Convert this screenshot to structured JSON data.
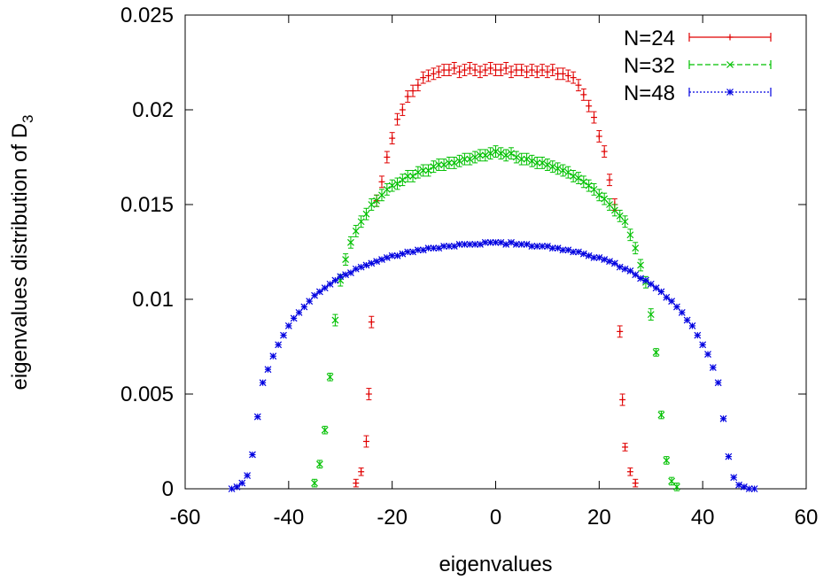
{
  "chart_data": {
    "type": "scatter",
    "xlabel": "eigenvalues",
    "ylabel_main": "eigenvalues distribution of D",
    "ylabel_sub": "3",
    "xlim": [
      -60,
      60
    ],
    "ylim": [
      0,
      0.025
    ],
    "x_ticks": [
      -60,
      -40,
      -20,
      0,
      20,
      40,
      60
    ],
    "x_tick_labels": [
      "-60",
      "-40",
      "-20",
      "0",
      "20",
      "40",
      "60"
    ],
    "y_ticks": [
      0,
      0.005,
      0.01,
      0.015,
      0.02,
      0.025
    ],
    "y_tick_labels": [
      "0",
      "0.005",
      "0.01",
      "0.015",
      "0.02",
      "0.025"
    ],
    "grid": false,
    "legend_position": "top-right",
    "series": [
      {
        "name": "N=24",
        "color": "#e00000",
        "marker": "plus",
        "line_style": "solid",
        "x": [
          -27,
          -26,
          -25,
          -24.5,
          -24,
          -23,
          -22,
          -21,
          -20,
          -19,
          -18,
          -17,
          -16,
          -15,
          -14,
          -13,
          -12,
          -11,
          -10,
          -9,
          -8,
          -7,
          -6,
          -5,
          -4,
          -3,
          -2,
          -1,
          0,
          1,
          2,
          3,
          4,
          5,
          6,
          7,
          8,
          9,
          10,
          11,
          12,
          13,
          14,
          15,
          16,
          17,
          18,
          19,
          20,
          21,
          22,
          23,
          24,
          24.5,
          25,
          26,
          27
        ],
        "y": [
          0.0003,
          0.0009,
          0.0025,
          0.005,
          0.0088,
          0.0152,
          0.0162,
          0.0175,
          0.0185,
          0.0195,
          0.02,
          0.0207,
          0.021,
          0.0213,
          0.0217,
          0.0218,
          0.0219,
          0.022,
          0.0221,
          0.0221,
          0.0222,
          0.022,
          0.0221,
          0.0222,
          0.0221,
          0.022,
          0.0221,
          0.0222,
          0.0221,
          0.0221,
          0.0222,
          0.022,
          0.0221,
          0.0221,
          0.022,
          0.0221,
          0.022,
          0.0221,
          0.022,
          0.0221,
          0.0219,
          0.0219,
          0.0218,
          0.0217,
          0.0213,
          0.0208,
          0.0202,
          0.0196,
          0.0186,
          0.0178,
          0.0163,
          0.015,
          0.0083,
          0.0047,
          0.0022,
          0.0009,
          0.0003
        ],
        "err": [
          0.0002,
          0.0002,
          0.0003,
          0.0003,
          0.0003,
          0.0003,
          0.0003,
          0.0003,
          0.0003,
          0.0003,
          0.0003,
          0.0003,
          0.0003,
          0.0003,
          0.0003,
          0.0003,
          0.0003,
          0.0003,
          0.0003,
          0.0003,
          0.0003,
          0.0003,
          0.0003,
          0.0003,
          0.0003,
          0.0003,
          0.0003,
          0.0003,
          0.0003,
          0.0003,
          0.0003,
          0.0003,
          0.0003,
          0.0003,
          0.0003,
          0.0003,
          0.0003,
          0.0003,
          0.0003,
          0.0003,
          0.0003,
          0.0003,
          0.0003,
          0.0003,
          0.0003,
          0.0003,
          0.0003,
          0.0003,
          0.0003,
          0.0003,
          0.0003,
          0.0003,
          0.0003,
          0.0003,
          0.0002,
          0.0002,
          0.0002
        ]
      },
      {
        "name": "N=32",
        "color": "#00c000",
        "marker": "x",
        "line_style": "dashed",
        "x": [
          -35,
          -34,
          -33,
          -32,
          -31,
          -30,
          -29,
          -28,
          -27,
          -26,
          -25,
          -24,
          -23,
          -22,
          -21,
          -20,
          -19,
          -18,
          -17,
          -16,
          -15,
          -14,
          -13,
          -12,
          -11,
          -10,
          -9,
          -8,
          -7,
          -6,
          -5,
          -4,
          -3,
          -2,
          -1,
          0,
          1,
          2,
          3,
          4,
          5,
          6,
          7,
          8,
          9,
          10,
          11,
          12,
          13,
          14,
          15,
          16,
          17,
          18,
          19,
          20,
          21,
          22,
          23,
          24,
          25,
          26,
          27,
          28,
          29,
          30,
          31,
          32,
          33,
          34,
          35
        ],
        "y": [
          0.0003,
          0.0013,
          0.0031,
          0.0059,
          0.0089,
          0.011,
          0.0121,
          0.013,
          0.0136,
          0.0141,
          0.0145,
          0.015,
          0.0152,
          0.0155,
          0.0158,
          0.016,
          0.0161,
          0.0163,
          0.0165,
          0.0165,
          0.0167,
          0.0168,
          0.0168,
          0.017,
          0.0171,
          0.0171,
          0.0172,
          0.0172,
          0.0173,
          0.0174,
          0.0174,
          0.0175,
          0.0176,
          0.0176,
          0.0177,
          0.0178,
          0.0177,
          0.0176,
          0.0177,
          0.0175,
          0.0174,
          0.0174,
          0.0173,
          0.0172,
          0.0172,
          0.0171,
          0.017,
          0.0169,
          0.0168,
          0.0167,
          0.0165,
          0.0164,
          0.0162,
          0.016,
          0.0158,
          0.0155,
          0.0153,
          0.015,
          0.0147,
          0.0144,
          0.0141,
          0.0134,
          0.0127,
          0.0118,
          0.0109,
          0.0092,
          0.0072,
          0.0039,
          0.0015,
          0.0004,
          0.0001
        ],
        "err": [
          0.0002,
          0.0002,
          0.0002,
          0.0002,
          0.0003,
          0.0003,
          0.0003,
          0.0003,
          0.0003,
          0.0003,
          0.0003,
          0.0003,
          0.0003,
          0.0003,
          0.0003,
          0.0003,
          0.0003,
          0.0003,
          0.0003,
          0.0003,
          0.0003,
          0.0003,
          0.0003,
          0.0003,
          0.0003,
          0.0003,
          0.0003,
          0.0003,
          0.0003,
          0.0003,
          0.0003,
          0.0003,
          0.0003,
          0.0003,
          0.0003,
          0.0003,
          0.0003,
          0.0003,
          0.0003,
          0.0003,
          0.0003,
          0.0003,
          0.0003,
          0.0003,
          0.0003,
          0.0003,
          0.0003,
          0.0003,
          0.0003,
          0.0003,
          0.0003,
          0.0003,
          0.0003,
          0.0003,
          0.0003,
          0.0003,
          0.0003,
          0.0003,
          0.0003,
          0.0003,
          0.0003,
          0.0003,
          0.0003,
          0.0003,
          0.0003,
          0.0003,
          0.0002,
          0.0002,
          0.0002,
          0.0002,
          0.0002
        ]
      },
      {
        "name": "N=48",
        "color": "#0000e0",
        "marker": "star",
        "line_style": "dotted",
        "x": [
          -51,
          -50,
          -49,
          -48,
          -47,
          -46,
          -45,
          -44,
          -43,
          -42,
          -41,
          -40,
          -39,
          -38,
          -37,
          -36,
          -35,
          -34,
          -33,
          -32,
          -31,
          -30,
          -29,
          -28,
          -27,
          -26,
          -25,
          -24,
          -23,
          -22,
          -21,
          -20,
          -19,
          -18,
          -17,
          -16,
          -15,
          -14,
          -13,
          -12,
          -11,
          -10,
          -9,
          -8,
          -7,
          -6,
          -5,
          -4,
          -3,
          -2,
          -1,
          0,
          1,
          2,
          3,
          4,
          5,
          6,
          7,
          8,
          9,
          10,
          11,
          12,
          13,
          14,
          15,
          16,
          17,
          18,
          19,
          20,
          21,
          22,
          23,
          24,
          25,
          26,
          27,
          28,
          29,
          30,
          31,
          32,
          33,
          34,
          35,
          36,
          37,
          38,
          39,
          40,
          41,
          42,
          43,
          44,
          45,
          46,
          47,
          48,
          49,
          50
        ],
        "y": [
          0.0,
          0.0001,
          0.0003,
          0.0007,
          0.0018,
          0.0038,
          0.0056,
          0.0063,
          0.007,
          0.0076,
          0.0081,
          0.0086,
          0.009,
          0.0093,
          0.0096,
          0.0099,
          0.0102,
          0.0104,
          0.0106,
          0.0108,
          0.011,
          0.0112,
          0.0113,
          0.0114,
          0.0116,
          0.0117,
          0.0118,
          0.0119,
          0.012,
          0.0121,
          0.0122,
          0.0123,
          0.0123,
          0.0124,
          0.0125,
          0.0125,
          0.0126,
          0.0126,
          0.0127,
          0.0127,
          0.0127,
          0.0128,
          0.0128,
          0.0128,
          0.0129,
          0.0129,
          0.0129,
          0.0129,
          0.0129,
          0.013,
          0.013,
          0.013,
          0.013,
          0.0129,
          0.013,
          0.0129,
          0.0129,
          0.0129,
          0.0128,
          0.0128,
          0.0128,
          0.0128,
          0.0127,
          0.0127,
          0.0126,
          0.0126,
          0.0125,
          0.0125,
          0.0124,
          0.0123,
          0.0122,
          0.0122,
          0.0121,
          0.012,
          0.0119,
          0.0117,
          0.0116,
          0.0115,
          0.0113,
          0.0111,
          0.011,
          0.0108,
          0.0106,
          0.0104,
          0.0101,
          0.0099,
          0.0096,
          0.0093,
          0.0089,
          0.0086,
          0.0081,
          0.0076,
          0.0071,
          0.0064,
          0.0056,
          0.0037,
          0.0017,
          0.0006,
          0.0002,
          0.0001,
          0.0,
          0.0
        ],
        "err": []
      }
    ]
  }
}
